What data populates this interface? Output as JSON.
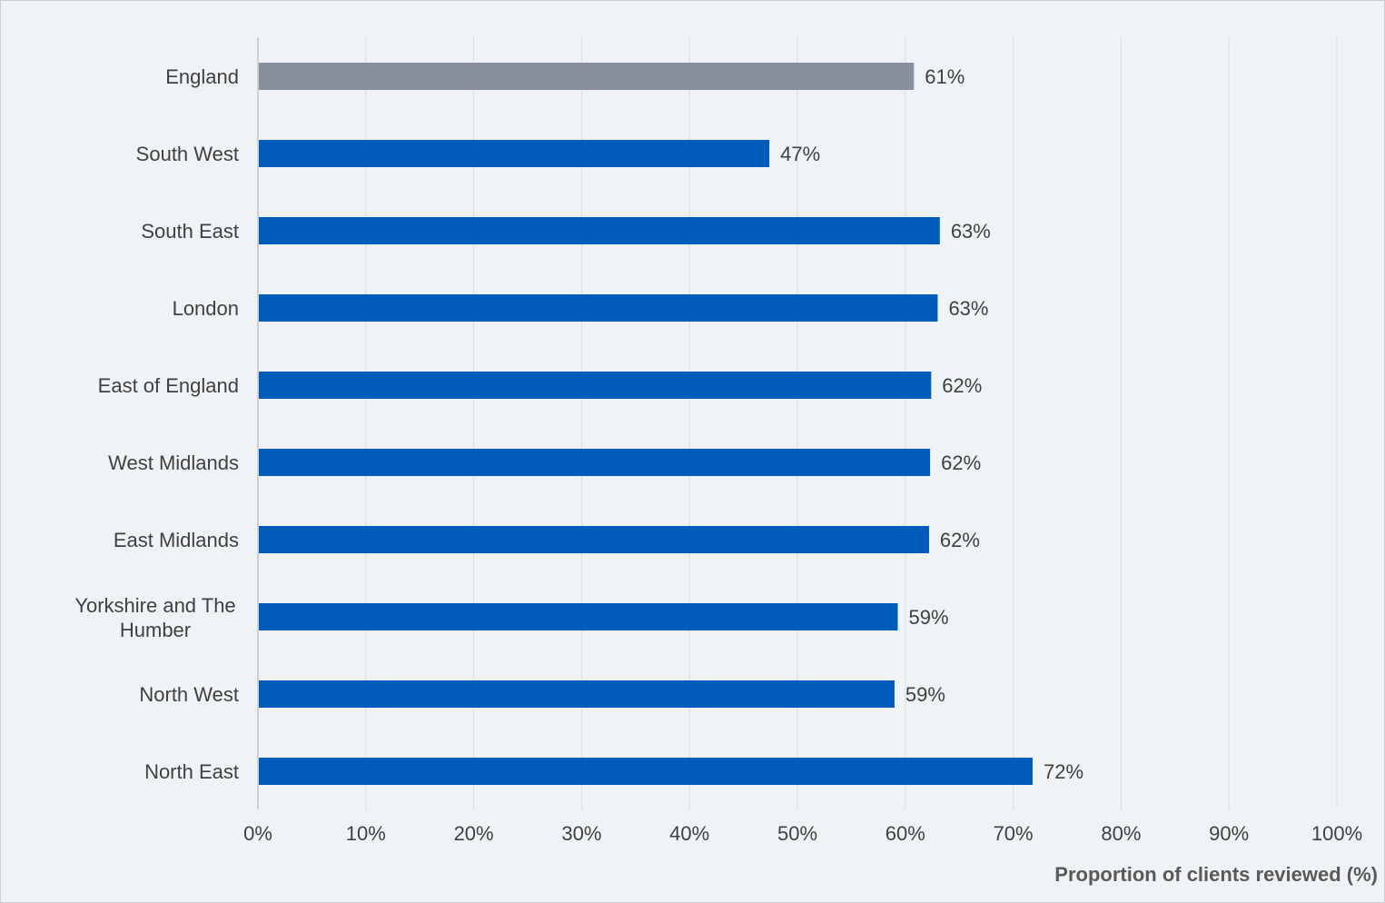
{
  "chart_data": {
    "type": "bar",
    "orientation": "horizontal",
    "categories": [
      "England",
      "South West",
      "South East",
      "London",
      "East of England",
      "West Midlands",
      "East Midlands",
      "Yorkshire and The Humber",
      "North West",
      "North East"
    ],
    "values": [
      60.8,
      47.4,
      63.2,
      63.0,
      62.4,
      62.3,
      62.2,
      59.3,
      59.0,
      71.8
    ],
    "data_labels": [
      "61%",
      "47%",
      "63%",
      "63%",
      "62%",
      "62%",
      "62%",
      "59%",
      "59%",
      "72%"
    ],
    "xlabel": "Proportion of clients reviewed (%)",
    "xlim": [
      0,
      100
    ],
    "xticks": [
      0,
      10,
      20,
      30,
      40,
      50,
      60,
      70,
      80,
      90,
      100
    ],
    "xtick_labels": [
      "0%",
      "10%",
      "20%",
      "30%",
      "40%",
      "50%",
      "60%",
      "70%",
      "80%",
      "90%",
      "100%"
    ],
    "grid": "vertical",
    "legend": "none",
    "colors": {
      "default_bar": "#005cbb",
      "highlight_bar": "#878f9a",
      "gridline": "#d9dee2",
      "axis": "#bfc4c8",
      "text": "#404040",
      "axis_title": "#595959",
      "background": "#f0f3f5"
    },
    "highlight_categories": [
      "England"
    ]
  }
}
